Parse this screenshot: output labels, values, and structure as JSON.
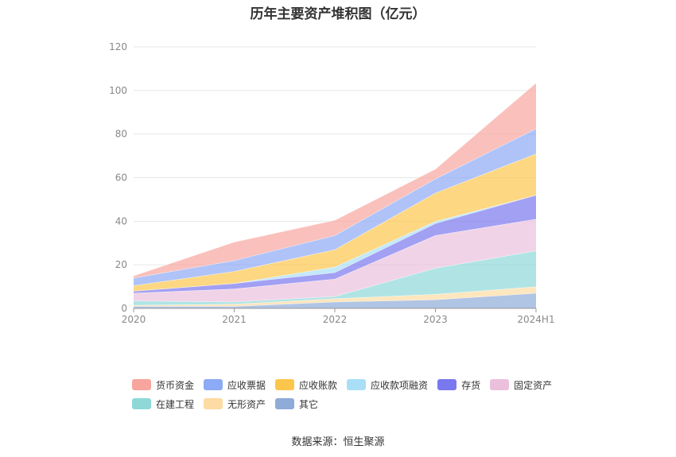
{
  "chart_data": {
    "type": "area",
    "stacked": true,
    "title": "历年主要资产堆积图（亿元）",
    "xlabel": "",
    "ylabel": "",
    "categories": [
      "2020",
      "2021",
      "2022",
      "2023",
      "2024H1"
    ],
    "ylim": [
      0,
      120
    ],
    "yticks": [
      0,
      20,
      40,
      60,
      80,
      100,
      120
    ],
    "grid": true,
    "legend_position": "bottom",
    "series": [
      {
        "name": "其它",
        "color": "#8fabd8",
        "values": [
          1.0,
          1.0,
          3.0,
          4.0,
          7.0
        ]
      },
      {
        "name": "无形资产",
        "color": "#fddba2",
        "values": [
          0.5,
          1.0,
          1.5,
          2.5,
          3.0
        ]
      },
      {
        "name": "在建工程",
        "color": "#8fd8d8",
        "values": [
          2.0,
          1.0,
          1.0,
          12.0,
          16.5
        ]
      },
      {
        "name": "固定资产",
        "color": "#ebc0dd",
        "values": [
          3.5,
          6.0,
          8.0,
          15.0,
          14.5
        ]
      },
      {
        "name": "存货",
        "color": "#7a78ee",
        "values": [
          1.0,
          2.5,
          3.0,
          5.5,
          11.0
        ]
      },
      {
        "name": "应收款项融资",
        "color": "#a9dff6",
        "values": [
          0.0,
          0.0,
          2.5,
          1.0,
          0.0
        ]
      },
      {
        "name": "应收账款",
        "color": "#fcc64d",
        "values": [
          2.5,
          5.5,
          8.0,
          13.0,
          19.0
        ]
      },
      {
        "name": "应收票据",
        "color": "#8daaf6",
        "values": [
          3.5,
          5.0,
          6.5,
          6.5,
          11.5
        ]
      },
      {
        "name": "货币资金",
        "color": "#f8a59e",
        "values": [
          1.0,
          8.5,
          7.0,
          4.5,
          21.0
        ]
      }
    ]
  },
  "legend": {
    "rows": [
      [
        {
          "name": "货币资金",
          "color": "#f8a59e"
        },
        {
          "name": "应收票据",
          "color": "#8daaf6"
        },
        {
          "name": "应收账款",
          "color": "#fcc64d"
        },
        {
          "name": "应收款项融资",
          "color": "#a9dff6"
        },
        {
          "name": "存货",
          "color": "#7a78ee"
        },
        {
          "name": "固定资产",
          "color": "#ebc0dd"
        }
      ],
      [
        {
          "name": "在建工程",
          "color": "#8fd8d8"
        },
        {
          "name": "无形资产",
          "color": "#fddba2"
        },
        {
          "name": "其它",
          "color": "#8fabd8"
        }
      ]
    ]
  },
  "footer": {
    "source": "数据来源：恒生聚源"
  }
}
